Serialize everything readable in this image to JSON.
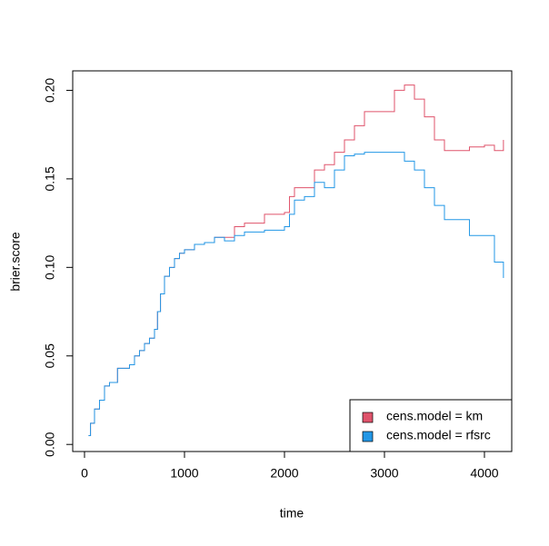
{
  "chart_data": {
    "type": "step",
    "x_label": "time",
    "y_label": "brier.score",
    "x": [
      40,
      60,
      100,
      150,
      200,
      250,
      330,
      400,
      450,
      500,
      550,
      600,
      650,
      700,
      730,
      760,
      800,
      850,
      900,
      950,
      1000,
      1100,
      1200,
      1300,
      1400,
      1500,
      1600,
      1800,
      2000,
      2050,
      2100,
      2200,
      2300,
      2400,
      2500,
      2600,
      2700,
      2800,
      3000,
      3100,
      3200,
      3300,
      3400,
      3500,
      3600,
      3700,
      3850,
      4000,
      4100,
      4190
    ],
    "series": [
      {
        "name": "cens.model = km",
        "color": "#DF536B",
        "values": [
          0.005,
          0.012,
          0.02,
          0.025,
          0.033,
          0.035,
          0.043,
          0.043,
          0.045,
          0.05,
          0.053,
          0.057,
          0.06,
          0.065,
          0.075,
          0.085,
          0.095,
          0.1,
          0.105,
          0.108,
          0.11,
          0.113,
          0.114,
          0.117,
          0.117,
          0.123,
          0.125,
          0.13,
          0.131,
          0.14,
          0.145,
          0.145,
          0.155,
          0.158,
          0.165,
          0.172,
          0.18,
          0.188,
          0.188,
          0.2,
          0.203,
          0.195,
          0.185,
          0.172,
          0.166,
          0.166,
          0.168,
          0.169,
          0.166,
          0.172
        ]
      },
      {
        "name": "cens.model = rfsrc",
        "color": "#2297E6",
        "values": [
          0.005,
          0.012,
          0.02,
          0.025,
          0.033,
          0.035,
          0.043,
          0.043,
          0.045,
          0.05,
          0.053,
          0.057,
          0.06,
          0.065,
          0.075,
          0.085,
          0.095,
          0.1,
          0.105,
          0.108,
          0.11,
          0.113,
          0.114,
          0.117,
          0.115,
          0.118,
          0.12,
          0.121,
          0.123,
          0.13,
          0.138,
          0.14,
          0.148,
          0.145,
          0.155,
          0.163,
          0.164,
          0.165,
          0.165,
          0.165,
          0.16,
          0.155,
          0.145,
          0.135,
          0.127,
          0.127,
          0.118,
          0.118,
          0.103,
          0.094
        ]
      }
    ],
    "xlim": [
      -118,
      4273
    ],
    "ylim": [
      -0.004,
      0.211
    ],
    "xticks": [
      0,
      1000,
      2000,
      3000,
      4000
    ],
    "yticks": [
      {
        "value": 0,
        "label": "0.00"
      },
      {
        "value": 0.05,
        "label": "0.05"
      },
      {
        "value": 0.1,
        "label": "0.10"
      },
      {
        "value": 0.15,
        "label": "0.15"
      },
      {
        "value": 0.2,
        "label": "0.20"
      }
    ],
    "legend": "bottomright"
  }
}
